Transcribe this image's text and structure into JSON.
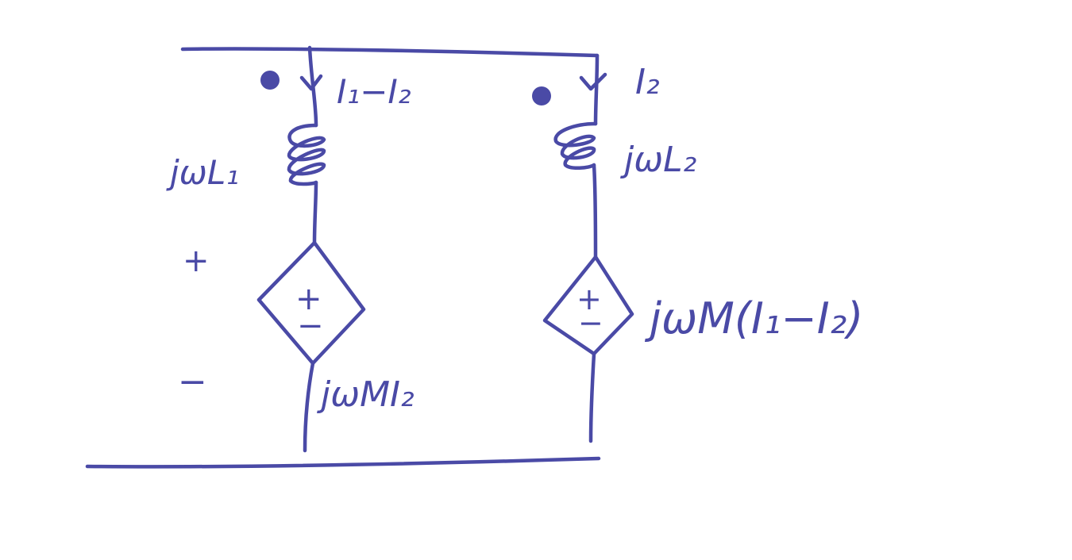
{
  "diagram": {
    "colors": {
      "ink": "#4a4aa6",
      "background": "#ffffff"
    },
    "labels": {
      "left_current": "I₁−I₂",
      "right_current": "I₂",
      "left_inductor": "jωL₁",
      "right_inductor": "jωL₂",
      "left_source": "jωMI₂",
      "right_source": "jωM(I₁−I₂)",
      "plus_sign": "+",
      "minus_sign": "−",
      "source_plus": "+",
      "source_minus": "−"
    }
  }
}
